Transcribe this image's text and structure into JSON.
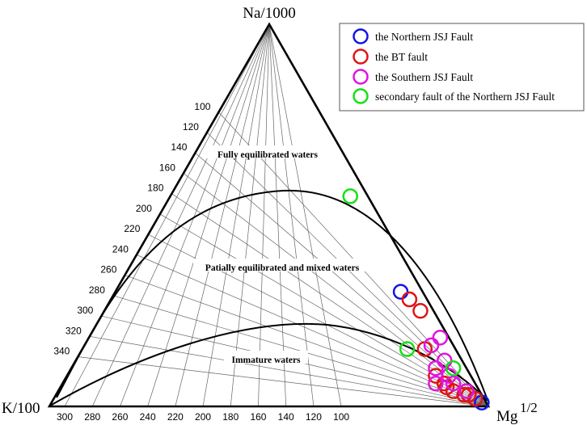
{
  "chart_data": {
    "type": "scatter",
    "subtype": "ternary",
    "vertices": {
      "top": "Na/1000",
      "left": "K/100",
      "right_base": "Mg",
      "right_exponent": "1/2"
    },
    "left_ticks": [
      "100",
      "120",
      "140",
      "160",
      "180",
      "200",
      "220",
      "240",
      "260",
      "280",
      "300",
      "320",
      "340"
    ],
    "bottom_ticks": [
      "300",
      "280",
      "260",
      "240",
      "220",
      "200",
      "180",
      "160",
      "140",
      "120",
      "100"
    ],
    "regions": [
      {
        "label": "Fully equilibrated waters"
      },
      {
        "label": "Patially equilibrated and mixed waters"
      },
      {
        "label": "Immature waters"
      }
    ],
    "legend_position": "top-right",
    "series": [
      {
        "name": "the Northern JSJ Fault",
        "color": "#1414e6",
        "points": [
          {
            "na": 30,
            "k": 5,
            "mg": 65
          },
          {
            "na": 2,
            "k": 2,
            "mg": 96
          },
          {
            "na": 1,
            "k": 1,
            "mg": 98
          }
        ]
      },
      {
        "name": "the BT fault",
        "color": "#e01414",
        "points": [
          {
            "na": 28,
            "k": 4,
            "mg": 68
          },
          {
            "na": 25,
            "k": 3,
            "mg": 72
          },
          {
            "na": 15,
            "k": 7,
            "mg": 78
          },
          {
            "na": 8,
            "k": 8,
            "mg": 84
          },
          {
            "na": 6,
            "k": 7,
            "mg": 87
          },
          {
            "na": 5,
            "k": 7,
            "mg": 88
          },
          {
            "na": 4,
            "k": 6,
            "mg": 90
          },
          {
            "na": 3,
            "k": 4,
            "mg": 93
          },
          {
            "na": 3,
            "k": 3,
            "mg": 94
          },
          {
            "na": 2,
            "k": 2,
            "mg": 96
          }
        ]
      },
      {
        "name": "the Southern JSJ Fault",
        "color": "#e014e0",
        "points": [
          {
            "na": 18,
            "k": 2,
            "mg": 80
          },
          {
            "na": 16,
            "k": 5,
            "mg": 79
          },
          {
            "na": 12,
            "k": 4,
            "mg": 84
          },
          {
            "na": 10,
            "k": 7,
            "mg": 83
          },
          {
            "na": 8,
            "k": 5,
            "mg": 87
          },
          {
            "na": 6,
            "k": 9,
            "mg": 85
          },
          {
            "na": 6,
            "k": 5,
            "mg": 89
          },
          {
            "na": 4,
            "k": 3,
            "mg": 93
          }
        ]
      },
      {
        "name": "secondary fault of the Northern JSJ Fault",
        "color": "#14e014",
        "points": [
          {
            "na": 55,
            "k": 4,
            "mg": 41
          },
          {
            "na": 15,
            "k": 11,
            "mg": 74
          },
          {
            "na": 10,
            "k": 3,
            "mg": 87
          }
        ]
      }
    ]
  }
}
